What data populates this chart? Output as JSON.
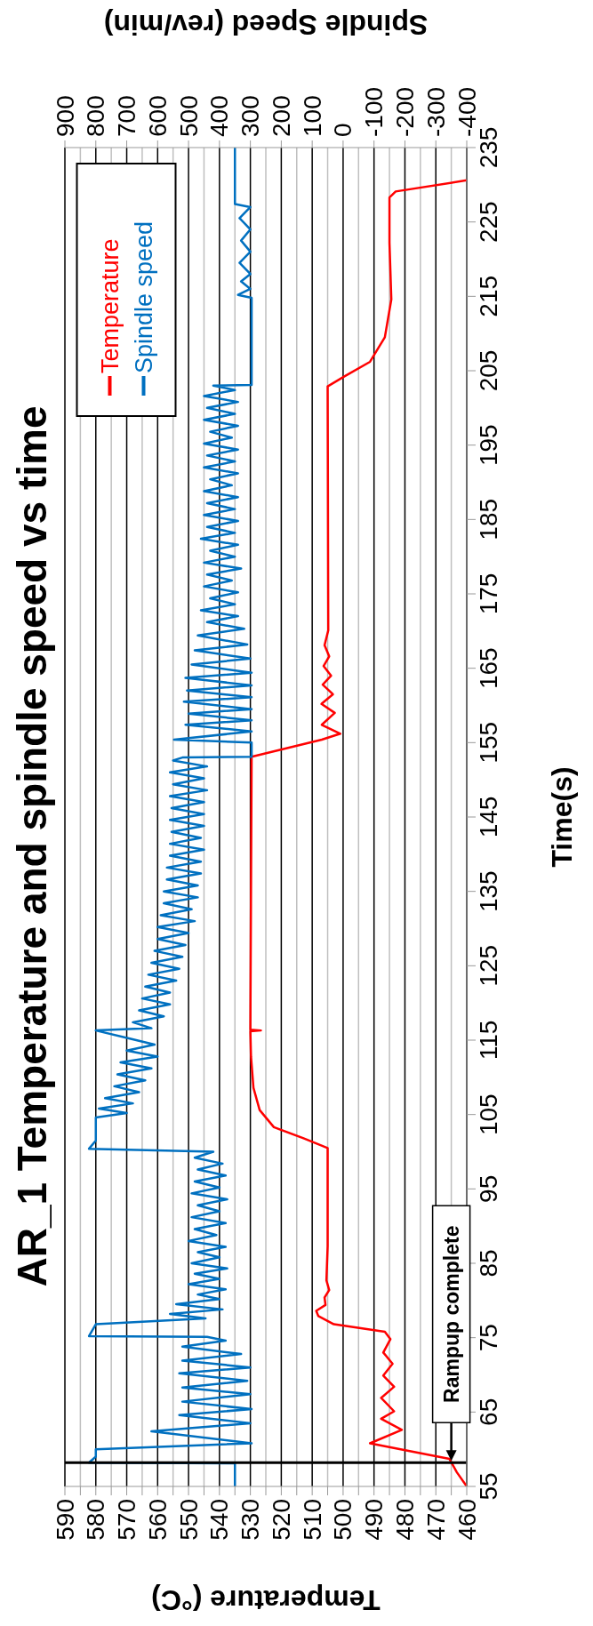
{
  "chart_data": {
    "type": "line",
    "title": "AR_1 Temperature and spindle speed vs time",
    "xlabel": "Temperature (°C)",
    "x2label": "Spindle Speed (rev/min)",
    "ylabel": "Time(s)",
    "xlim": [
      590,
      460
    ],
    "xticks": [
      590,
      {
        "value": 585,
        "label": null
      },
      580,
      {
        "value": 575,
        "label": null
      },
      570,
      {
        "value": 565,
        "label": null
      },
      560,
      {
        "value": 555,
        "label": null
      },
      550,
      {
        "value": 545,
        "label": null
      },
      540,
      {
        "value": 535,
        "label": null
      },
      530,
      {
        "value": 525,
        "label": null
      },
      520,
      {
        "value": 515,
        "label": null
      },
      510,
      {
        "value": 505,
        "label": null
      },
      500,
      {
        "value": 495,
        "label": null
      },
      490,
      {
        "value": 485,
        "label": null
      },
      480,
      {
        "value": 475,
        "label": null
      },
      470,
      {
        "value": 465,
        "label": null
      },
      460
    ],
    "x2lim": [
      900,
      -400
    ],
    "x2ticks": [
      900,
      800,
      700,
      600,
      500,
      400,
      300,
      200,
      100,
      0,
      -100,
      -200,
      -300,
      -400
    ],
    "ylim": [
      55,
      235
    ],
    "yticks": [
      55,
      65,
      75,
      85,
      95,
      105,
      115,
      125,
      135,
      145,
      155,
      165,
      175,
      185,
      195,
      205,
      215,
      225,
      235
    ],
    "grid": "x",
    "legend": "top left",
    "line_style": "solid",
    "ref_lines": [
      {
        "axis": "y",
        "value": 58.2,
        "color": "#000000"
      }
    ],
    "annotations": [
      {
        "text": "Rampup complete",
        "x": 465,
        "y": 58.2
      }
    ],
    "series": [
      {
        "name": "Temperature",
        "color": "#ff0000",
        "x": [
          460,
          463.2,
          465.6,
          491.3,
          481,
          487.7,
          483.5,
          487.7,
          483.5,
          487,
          484,
          487,
          484.7,
          486.5,
          503,
          508,
          508.7,
          505.7,
          506,
          504.5,
          505.4,
          505,
          505,
          512.8,
          522.4,
          527,
          529,
          529.8,
          530,
          526.6,
          530,
          529.6,
          506.9,
          500.9,
          506.9,
          502.7,
          507,
          503.3,
          506.6,
          503.9,
          506.3,
          504.5,
          506,
          504.8,
          505,
          499.7,
          491.3,
          486.5,
          484.4,
          485,
          485,
          483,
          460
        ],
        "values": [
          55,
          56.9,
          58.7,
          60.8,
          62.6,
          64.1,
          65.1,
          66.9,
          68.4,
          69.9,
          71.5,
          73,
          74.8,
          75.8,
          76.8,
          77.9,
          78.6,
          79.4,
          80.4,
          81.4,
          82.7,
          87.3,
          100.5,
          101.8,
          103.3,
          105.6,
          108.6,
          112.8,
          116.2,
          116.3,
          116.4,
          153.1,
          155.4,
          156.2,
          157.4,
          159,
          160.2,
          161.5,
          162.8,
          164,
          165.3,
          166.6,
          168.1,
          170.1,
          202.9,
          204.2,
          206.2,
          209.5,
          214.6,
          222.2,
          228.3,
          229.1,
          230.6
        ]
      },
      {
        "name": "Spindle speed",
        "color": "#0070c0",
        "axis": "x2",
        "x": [
          350,
          350,
          822,
          800,
          800,
          296,
          620,
          300,
          530,
          296,
          520,
          300,
          520,
          310,
          530,
          300,
          520,
          330,
          520,
          380,
          440,
          822,
          800,
          445,
          560,
          390,
          540,
          400,
          470,
          380,
          500,
          400,
          480,
          375,
          490,
          400,
          470,
          380,
          500,
          410,
          480,
          380,
          490,
          400,
          470,
          375,
          490,
          400,
          480,
          380,
          470,
          390,
          480,
          420,
          822,
          800,
          800,
          800,
          700,
          790,
          680,
          770,
          660,
          740,
          640,
          730,
          620,
          720,
          600,
          700,
          610,
          690,
          800,
          620,
          680,
          580,
          660,
          560,
          650,
          560,
          640,
          540,
          630,
          530,
          620,
          520,
          610,
          510,
          600,
          500,
          600,
          480,
          590,
          490,
          580,
          470,
          580,
          470,
          570,
          460,
          570,
          460,
          560,
          450,
          560,
          460,
          555,
          450,
          560,
          450,
          555,
          450,
          560,
          440,
          550,
          450,
          560,
          440,
          550,
          520,
          296,
          296,
          547,
          296,
          510,
          296,
          500,
          296,
          515,
          296,
          505,
          296,
          510,
          296,
          490,
          300,
          480,
          310,
          470,
          320,
          440,
          340,
          460,
          350,
          430,
          340,
          450,
          360,
          440,
          330,
          450,
          350,
          430,
          340,
          460,
          350,
          440,
          340,
          450,
          350,
          440,
          340,
          450,
          360,
          430,
          340,
          450,
          350,
          440,
          340,
          450,
          360,
          430,
          340,
          450,
          350,
          440,
          340,
          450,
          350,
          420,
          296,
          296,
          340,
          300,
          330,
          300,
          335,
          300,
          330,
          300,
          335,
          300,
          350,
          350
        ],
        "values": [
          55,
          58.1,
          58.2,
          59,
          60,
          60.8,
          62.4,
          63.5,
          64.6,
          65.4,
          66.4,
          67.4,
          68.3,
          69.2,
          70.2,
          71,
          71.9,
          72.8,
          73.8,
          74.6,
          75.1,
          75.2,
          76.8,
          77.6,
          78.2,
          78.8,
          79.5,
          80.2,
          80.8,
          81.5,
          82.2,
          82.9,
          83.6,
          84.3,
          85,
          85.8,
          86.5,
          87.2,
          88,
          88.8,
          89.6,
          90.4,
          91.2,
          92,
          92.8,
          93.6,
          94.4,
          95.2,
          96,
          96.8,
          97.6,
          98.4,
          99.2,
          100,
          100.4,
          101.5,
          103,
          104.6,
          105.2,
          105.8,
          106.5,
          107.2,
          108,
          108.8,
          109.6,
          110.4,
          111.2,
          112,
          112.8,
          113.6,
          114.4,
          115.2,
          116.3,
          116.6,
          117.4,
          118.2,
          119,
          119.8,
          120.6,
          121.4,
          122.2,
          123,
          123.8,
          124.6,
          125.4,
          126.2,
          127,
          127.8,
          128.6,
          129.4,
          130.2,
          131,
          131.8,
          132.6,
          133.4,
          134.2,
          135,
          135.8,
          136.6,
          137.4,
          138.2,
          139,
          139.8,
          140.6,
          141.4,
          142.2,
          143,
          143.8,
          144.6,
          145.4,
          146.2,
          147,
          147.8,
          148.6,
          149.4,
          150.2,
          151,
          151.8,
          152.6,
          153,
          153.1,
          155,
          155.4,
          156.5,
          157.4,
          158,
          158.9,
          159.5,
          160.5,
          161.1,
          162,
          162.7,
          163.7,
          164.4,
          165.5,
          166.3,
          167.4,
          168.2,
          169.4,
          170.3,
          171.2,
          172,
          172.8,
          173.6,
          174.4,
          175.2,
          176,
          176.8,
          177.6,
          178.4,
          179.2,
          180,
          180.8,
          181.6,
          182.4,
          183.2,
          184,
          184.8,
          185.6,
          186.4,
          187.2,
          188,
          188.8,
          189.6,
          190.4,
          191.2,
          192,
          192.8,
          193.6,
          194.4,
          195.2,
          196,
          196.8,
          197.6,
          198.4,
          199.2,
          200,
          200.8,
          201.6,
          202.4,
          203,
          203.1,
          214.8,
          215.2,
          216,
          217,
          218,
          219.5,
          221,
          222.5,
          224,
          225.5,
          227,
          227.4,
          235
        ]
      }
    ]
  }
}
